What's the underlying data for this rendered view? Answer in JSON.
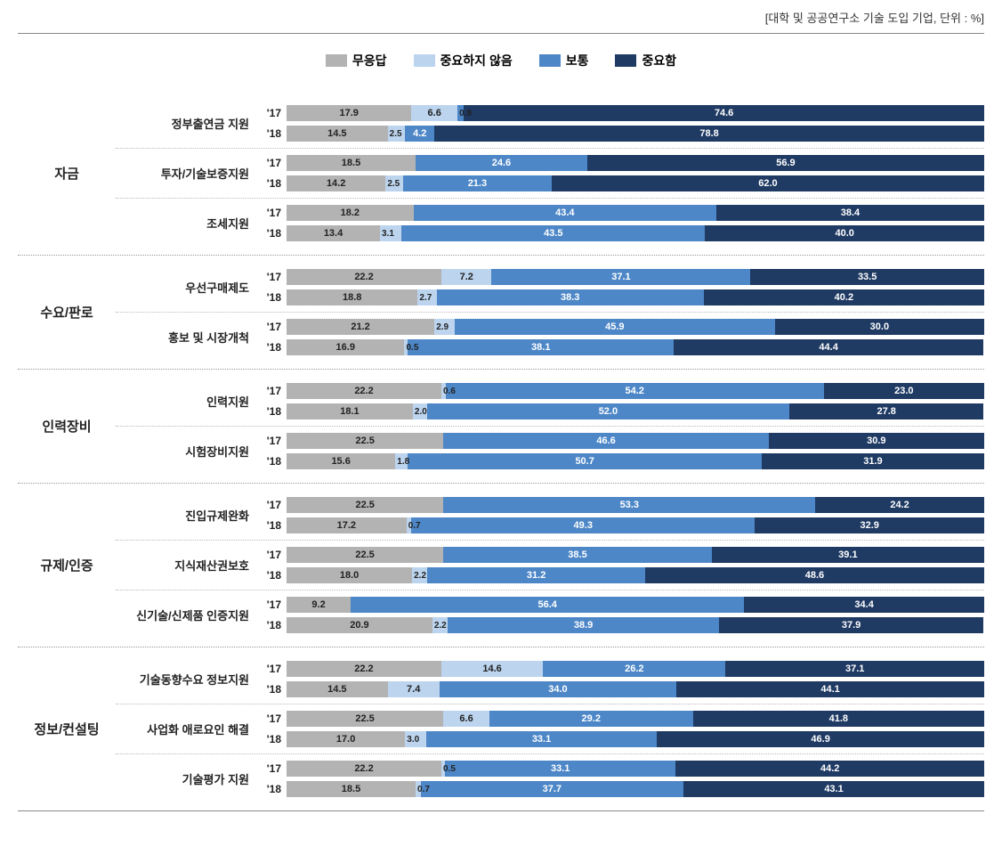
{
  "header_note": "[대학 및 공공연구소 기술 도입 기업, 단위 : %]",
  "legend": {
    "items": [
      {
        "label": "무응답",
        "color": "#b3b3b3"
      },
      {
        "label": "중요하지 않음",
        "color": "#bcd4ee"
      },
      {
        "label": "보통",
        "color": "#4d87c7"
      },
      {
        "label": "중요함",
        "color": "#1f3a63"
      }
    ]
  },
  "colors": {
    "seg1": "#b3b3b3",
    "seg2": "#bcd4ee",
    "seg3": "#4d87c7",
    "seg4": "#1f3a63",
    "text_dark": "#222222",
    "text_light": "#ffffff"
  },
  "chart": {
    "type": "stacked-horizontal-bar",
    "groups": [
      {
        "label": "자금",
        "items": [
          {
            "label": "정부출연금 지원",
            "rows": [
              {
                "year": "'17",
                "values": [
                  17.9,
                  6.6,
                  0.9,
                  74.6
                ]
              },
              {
                "year": "'18",
                "values": [
                  14.5,
                  2.5,
                  4.2,
                  78.8
                ]
              }
            ]
          },
          {
            "label": "투자/기술보증지원",
            "rows": [
              {
                "year": "'17",
                "values": [
                  18.5,
                  0,
                  24.6,
                  56.9
                ]
              },
              {
                "year": "'18",
                "values": [
                  14.2,
                  2.5,
                  21.3,
                  62.0
                ]
              }
            ]
          },
          {
            "label": "조세지원",
            "rows": [
              {
                "year": "'17",
                "values": [
                  18.2,
                  0,
                  43.4,
                  38.4
                ]
              },
              {
                "year": "'18",
                "values": [
                  13.4,
                  3.1,
                  43.5,
                  40.0
                ]
              }
            ]
          }
        ]
      },
      {
        "label": "수요/판로",
        "items": [
          {
            "label": "우선구매제도",
            "rows": [
              {
                "year": "'17",
                "values": [
                  22.2,
                  7.2,
                  37.1,
                  33.5
                ]
              },
              {
                "year": "'18",
                "values": [
                  18.8,
                  2.7,
                  38.3,
                  40.2
                ]
              }
            ]
          },
          {
            "label": "홍보 및 시장개척",
            "rows": [
              {
                "year": "'17",
                "values": [
                  21.2,
                  2.9,
                  45.9,
                  30.0
                ]
              },
              {
                "year": "'18",
                "values": [
                  16.9,
                  0.5,
                  38.1,
                  44.4
                ]
              }
            ]
          }
        ]
      },
      {
        "label": "인력장비",
        "items": [
          {
            "label": "인력지원",
            "rows": [
              {
                "year": "'17",
                "values": [
                  22.2,
                  0.6,
                  54.2,
                  23.0
                ]
              },
              {
                "year": "'18",
                "values": [
                  18.1,
                  2.0,
                  52.0,
                  27.8
                ]
              }
            ]
          },
          {
            "label": "시험장비지원",
            "rows": [
              {
                "year": "'17",
                "values": [
                  22.5,
                  0,
                  46.6,
                  30.9
                ]
              },
              {
                "year": "'18",
                "values": [
                  15.6,
                  1.8,
                  50.7,
                  31.9
                ]
              }
            ]
          }
        ]
      },
      {
        "label": "규제/인증",
        "items": [
          {
            "label": "진입규제완화",
            "rows": [
              {
                "year": "'17",
                "values": [
                  22.5,
                  0,
                  53.3,
                  24.2
                ]
              },
              {
                "year": "'18",
                "values": [
                  17.2,
                  0.7,
                  49.3,
                  32.9
                ]
              }
            ]
          },
          {
            "label": "지식재산권보호",
            "rows": [
              {
                "year": "'17",
                "values": [
                  22.5,
                  0,
                  38.5,
                  39.1
                ]
              },
              {
                "year": "'18",
                "values": [
                  18.0,
                  2.2,
                  31.2,
                  48.6
                ]
              }
            ]
          },
          {
            "label": "신기술/신제품 인증지원",
            "rows": [
              {
                "year": "'17",
                "values": [
                  9.2,
                  0,
                  56.4,
                  34.4
                ]
              },
              {
                "year": "'18",
                "values": [
                  20.9,
                  2.2,
                  38.9,
                  37.9
                ]
              }
            ]
          }
        ]
      },
      {
        "label": "정보/컨설팅",
        "items": [
          {
            "label": "기술동향수요 정보지원",
            "rows": [
              {
                "year": "'17",
                "values": [
                  22.2,
                  14.6,
                  26.2,
                  37.1
                ]
              },
              {
                "year": "'18",
                "values": [
                  14.5,
                  7.4,
                  34.0,
                  44.1
                ]
              }
            ]
          },
          {
            "label": "사업화 애로요인 해결",
            "rows": [
              {
                "year": "'17",
                "values": [
                  22.5,
                  6.6,
                  29.2,
                  41.8
                ]
              },
              {
                "year": "'18",
                "values": [
                  17.0,
                  3.0,
                  33.1,
                  46.9
                ]
              }
            ]
          },
          {
            "label": "기술평가 지원",
            "rows": [
              {
                "year": "'17",
                "values": [
                  22.2,
                  0.5,
                  33.1,
                  44.2
                ]
              },
              {
                "year": "'18",
                "values": [
                  18.5,
                  0.7,
                  37.7,
                  43.1
                ]
              }
            ]
          }
        ]
      }
    ]
  }
}
